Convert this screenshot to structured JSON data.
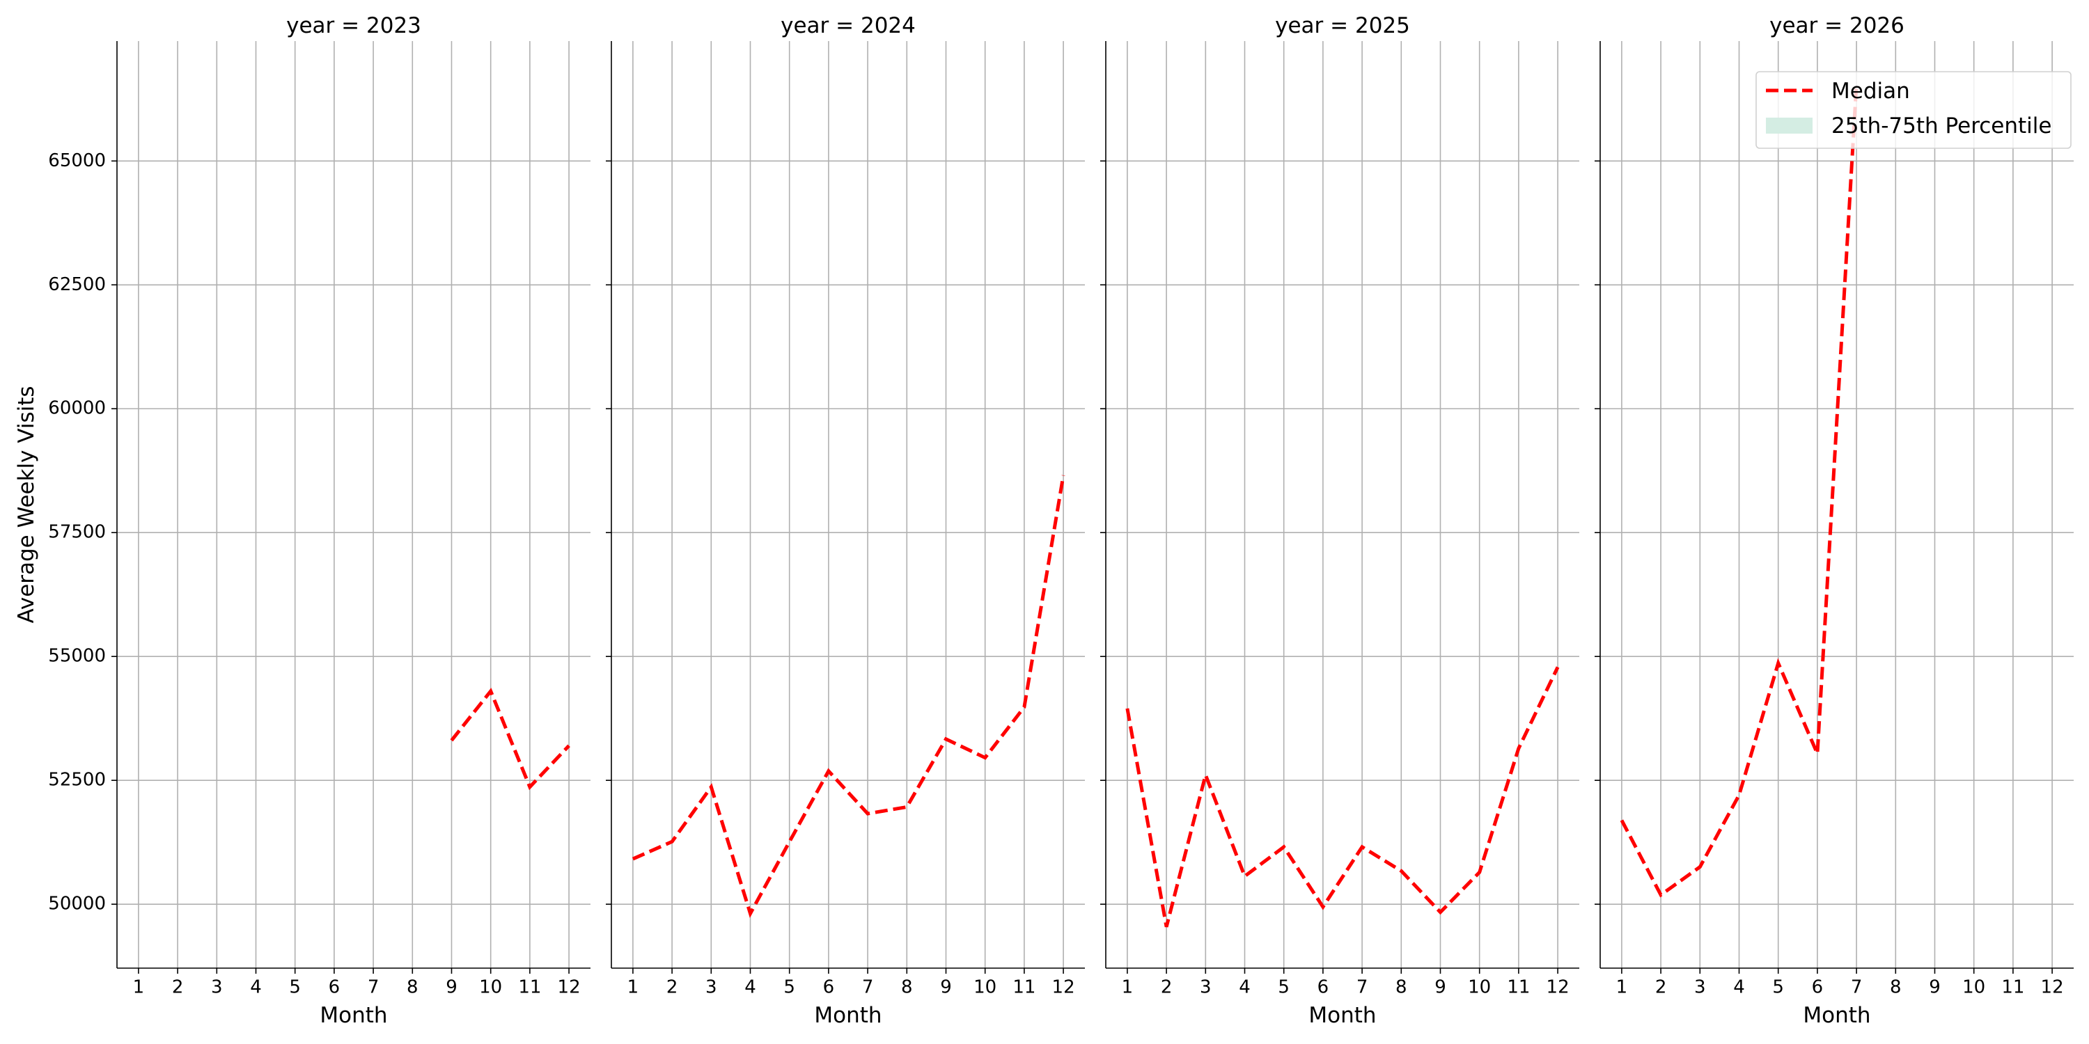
{
  "chart_data": [
    {
      "type": "line",
      "title": "year = 2023",
      "x_label": "Month",
      "y_label": "Average Weekly Visits",
      "x": [
        1,
        2,
        3,
        4,
        5,
        6,
        7,
        8,
        9,
        10,
        11,
        12
      ],
      "series": [
        {
          "name": "Median",
          "color": "#ff0000",
          "values": [
            null,
            null,
            null,
            null,
            null,
            null,
            null,
            null,
            53306,
            54300,
            52366,
            53200
          ]
        }
      ],
      "xlim": [
        0.45,
        12.55
      ],
      "xticks": [
        1,
        2,
        3,
        4,
        5,
        6,
        7,
        8,
        9,
        10,
        11,
        12
      ],
      "ylim": [
        48710,
        67420
      ],
      "yticks": [
        50000,
        52500,
        55000,
        57500,
        60000,
        62500,
        65000
      ],
      "grid": true
    },
    {
      "type": "line",
      "title": "year = 2024",
      "x_label": "Month",
      "x": [
        1,
        2,
        3,
        4,
        5,
        6,
        7,
        8,
        9,
        10,
        11,
        12
      ],
      "series": [
        {
          "name": "Median",
          "color": "#ff0000",
          "values": [
            50914,
            51263,
            52366,
            49812,
            51260,
            52688,
            51828,
            51962,
            53333,
            52957,
            53978,
            58656
          ]
        }
      ],
      "xlim": [
        0.45,
        12.55
      ],
      "xticks": [
        1,
        2,
        3,
        4,
        5,
        6,
        7,
        8,
        9,
        10,
        11,
        12
      ],
      "ylim": [
        48710,
        67420
      ],
      "yticks": [
        50000,
        52500,
        55000,
        57500,
        60000,
        62500,
        65000
      ],
      "grid": true
    },
    {
      "type": "line",
      "title": "year = 2025",
      "x_label": "Month",
      "x": [
        1,
        2,
        3,
        4,
        5,
        6,
        7,
        8,
        9,
        10,
        11,
        12
      ],
      "series": [
        {
          "name": "Median",
          "color": "#ff0000",
          "values": [
            53950,
            49543,
            52608,
            50565,
            51156,
            49946,
            51156,
            50672,
            49839,
            50645,
            53145,
            54785
          ]
        }
      ],
      "xlim": [
        0.45,
        12.55
      ],
      "xticks": [
        1,
        2,
        3,
        4,
        5,
        6,
        7,
        8,
        9,
        10,
        11,
        12
      ],
      "ylim": [
        48710,
        67420
      ],
      "yticks": [
        50000,
        52500,
        55000,
        57500,
        60000,
        62500,
        65000
      ],
      "grid": true
    },
    {
      "type": "line",
      "title": "year = 2026",
      "x_label": "Month",
      "x": [
        1,
        2,
        3,
        4,
        5,
        6,
        7,
        8,
        9,
        10,
        11,
        12
      ],
      "series": [
        {
          "name": "Median",
          "color": "#ff0000",
          "values": [
            51694,
            50188,
            50753,
            52204,
            54866,
            53038,
            66559,
            null,
            null,
            null,
            null,
            null
          ]
        }
      ],
      "band": {
        "name": "25th-75th Percentile",
        "color": "#d4ede3"
      },
      "legend": "upper right",
      "xlim": [
        0.45,
        12.55
      ],
      "xticks": [
        1,
        2,
        3,
        4,
        5,
        6,
        7,
        8,
        9,
        10,
        11,
        12
      ],
      "ylim": [
        48710,
        67420
      ],
      "yticks": [
        50000,
        52500,
        55000,
        57500,
        60000,
        62500,
        65000
      ],
      "grid": true
    }
  ]
}
